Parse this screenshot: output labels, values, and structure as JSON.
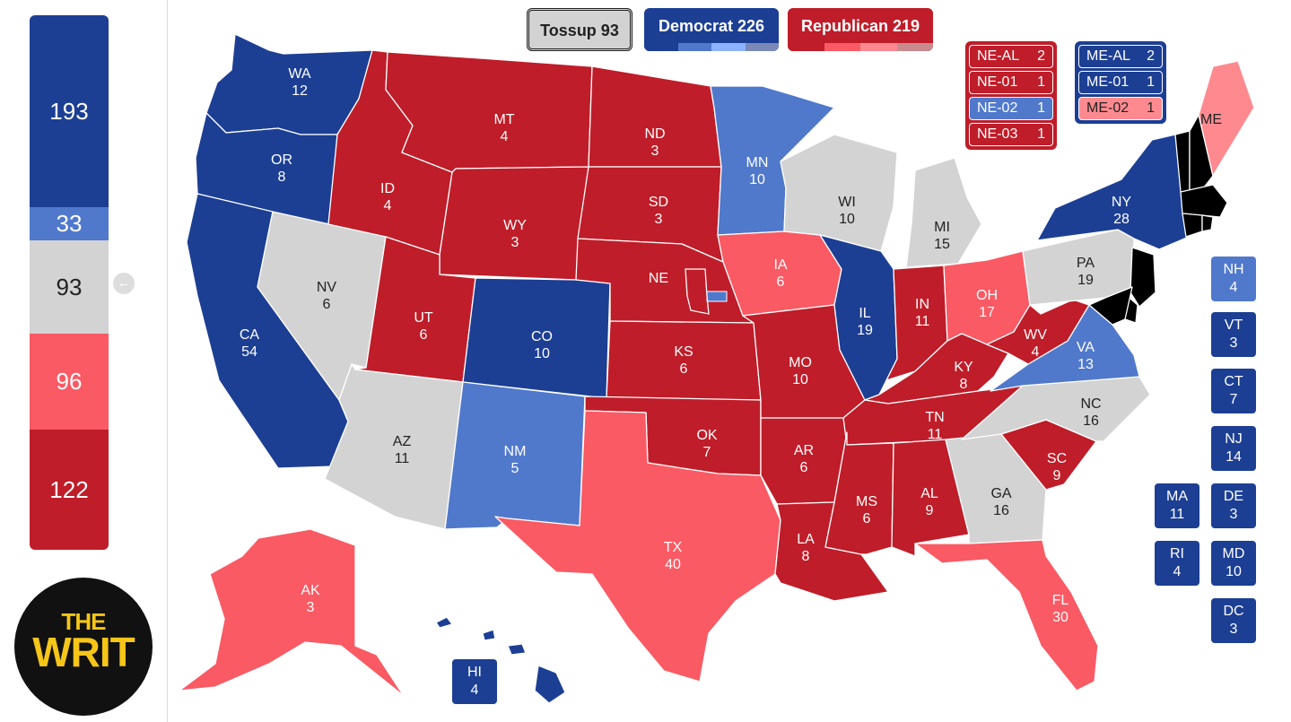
{
  "sidebar": {
    "segments": [
      {
        "value": "193",
        "color": "#1c3f94"
      },
      {
        "value": "33",
        "color": "#5079cc"
      },
      {
        "value": "93",
        "color": "#d3d3d3"
      },
      {
        "value": "96",
        "color": "#fa5a64"
      },
      {
        "value": "122",
        "color": "#bf1d29"
      }
    ],
    "collapse_icon": "arrow-left-circle-icon",
    "logo": {
      "line1": "THE",
      "line2": "WRIT"
    }
  },
  "tally": {
    "tossup": "Tossup 93",
    "democrat": "Democrat 226",
    "republican": "Republican 219"
  },
  "nebraska": [
    {
      "name": "NE-AL",
      "ev": "2"
    },
    {
      "name": "NE-01",
      "ev": "1"
    },
    {
      "name": "NE-02",
      "ev": "1"
    },
    {
      "name": "NE-03",
      "ev": "1"
    }
  ],
  "maine": [
    {
      "name": "ME-AL",
      "ev": "2"
    },
    {
      "name": "ME-01",
      "ev": "1"
    },
    {
      "name": "ME-02",
      "ev": "1"
    }
  ],
  "colors": {
    "safe_d": "#1c3f94",
    "lean_d": "#5079cc",
    "tossup": "#d3d3d3",
    "lean_r": "#fa5a64",
    "likely_r": "#fe8a90",
    "safe_r": "#bf1d29"
  },
  "states": {
    "WA": {
      "abbr": "WA",
      "ev": "12",
      "rating": "safe_d"
    },
    "OR": {
      "abbr": "OR",
      "ev": "8",
      "rating": "safe_d"
    },
    "CA": {
      "abbr": "CA",
      "ev": "54",
      "rating": "safe_d"
    },
    "NV": {
      "abbr": "NV",
      "ev": "6",
      "rating": "tossup"
    },
    "ID": {
      "abbr": "ID",
      "ev": "4",
      "rating": "safe_r"
    },
    "MT": {
      "abbr": "MT",
      "ev": "4",
      "rating": "safe_r"
    },
    "WY": {
      "abbr": "WY",
      "ev": "3",
      "rating": "safe_r"
    },
    "UT": {
      "abbr": "UT",
      "ev": "6",
      "rating": "safe_r"
    },
    "AZ": {
      "abbr": "AZ",
      "ev": "11",
      "rating": "tossup"
    },
    "CO": {
      "abbr": "CO",
      "ev": "10",
      "rating": "safe_d"
    },
    "NM": {
      "abbr": "NM",
      "ev": "5",
      "rating": "lean_d"
    },
    "ND": {
      "abbr": "ND",
      "ev": "3",
      "rating": "safe_r"
    },
    "SD": {
      "abbr": "SD",
      "ev": "3",
      "rating": "safe_r"
    },
    "NE": {
      "abbr": "NE",
      "ev": "",
      "rating": "safe_r"
    },
    "KS": {
      "abbr": "KS",
      "ev": "6",
      "rating": "safe_r"
    },
    "OK": {
      "abbr": "OK",
      "ev": "7",
      "rating": "safe_r"
    },
    "TX": {
      "abbr": "TX",
      "ev": "40",
      "rating": "lean_r"
    },
    "MN": {
      "abbr": "MN",
      "ev": "10",
      "rating": "lean_d"
    },
    "IA": {
      "abbr": "IA",
      "ev": "6",
      "rating": "lean_r"
    },
    "MO": {
      "abbr": "MO",
      "ev": "10",
      "rating": "safe_r"
    },
    "AR": {
      "abbr": "AR",
      "ev": "6",
      "rating": "safe_r"
    },
    "LA": {
      "abbr": "LA",
      "ev": "8",
      "rating": "safe_r"
    },
    "WI": {
      "abbr": "WI",
      "ev": "10",
      "rating": "tossup"
    },
    "IL": {
      "abbr": "IL",
      "ev": "19",
      "rating": "safe_d"
    },
    "MI": {
      "abbr": "MI",
      "ev": "15",
      "rating": "tossup"
    },
    "IN": {
      "abbr": "IN",
      "ev": "11",
      "rating": "safe_r"
    },
    "OH": {
      "abbr": "OH",
      "ev": "17",
      "rating": "lean_r"
    },
    "KY": {
      "abbr": "KY",
      "ev": "8",
      "rating": "safe_r"
    },
    "TN": {
      "abbr": "TN",
      "ev": "11",
      "rating": "safe_r"
    },
    "MS": {
      "abbr": "MS",
      "ev": "6",
      "rating": "safe_r"
    },
    "AL": {
      "abbr": "AL",
      "ev": "9",
      "rating": "safe_r"
    },
    "GA": {
      "abbr": "GA",
      "ev": "16",
      "rating": "tossup"
    },
    "FL": {
      "abbr": "FL",
      "ev": "30",
      "rating": "lean_r"
    },
    "SC": {
      "abbr": "SC",
      "ev": "9",
      "rating": "safe_r"
    },
    "NC": {
      "abbr": "NC",
      "ev": "16",
      "rating": "tossup"
    },
    "VA": {
      "abbr": "VA",
      "ev": "13",
      "rating": "lean_d"
    },
    "WV": {
      "abbr": "WV",
      "ev": "4",
      "rating": "safe_r"
    },
    "PA": {
      "abbr": "PA",
      "ev": "19",
      "rating": "tossup"
    },
    "NY": {
      "abbr": "NY",
      "ev": "28",
      "rating": "safe_d"
    },
    "ME": {
      "abbr": "ME",
      "ev": "",
      "rating": "likely_r"
    },
    "AK": {
      "abbr": "AK",
      "ev": "3",
      "rating": "lean_r"
    },
    "HI": {
      "abbr": "HI",
      "ev": "4",
      "rating": "safe_d"
    }
  },
  "small_states": [
    {
      "abbr": "NH",
      "ev": "4",
      "rating": "lean_d"
    },
    {
      "abbr": "VT",
      "ev": "3",
      "rating": "safe_d"
    },
    {
      "abbr": "CT",
      "ev": "7",
      "rating": "safe_d"
    },
    {
      "abbr": "NJ",
      "ev": "14",
      "rating": "safe_d"
    },
    {
      "abbr": "MA",
      "ev": "11",
      "rating": "safe_d"
    },
    {
      "abbr": "DE",
      "ev": "3",
      "rating": "safe_d"
    },
    {
      "abbr": "RI",
      "ev": "4",
      "rating": "safe_d"
    },
    {
      "abbr": "MD",
      "ev": "10",
      "rating": "safe_d"
    },
    {
      "abbr": "DC",
      "ev": "3",
      "rating": "safe_d"
    }
  ]
}
